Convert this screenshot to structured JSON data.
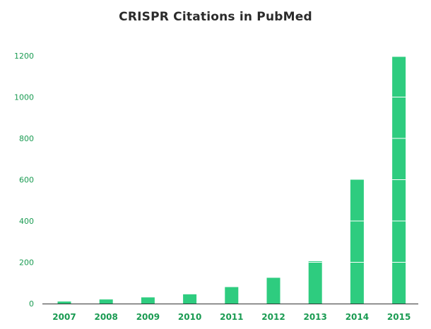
{
  "chart_data": {
    "type": "bar",
    "title": "CRISPR Citations in PubMed",
    "xlabel": "",
    "ylabel": "",
    "categories": [
      "2007",
      "2008",
      "2009",
      "2010",
      "2011",
      "2012",
      "2013",
      "2014",
      "2015"
    ],
    "values": [
      10,
      20,
      30,
      45,
      80,
      125,
      205,
      600,
      1195
    ],
    "ylim": [
      0,
      1200
    ],
    "yticks": [
      "0",
      "200",
      "400",
      "600",
      "800",
      "1000",
      "1200"
    ],
    "grid": false,
    "legend": "none",
    "colors": {
      "bar": "#2ecc7f",
      "axis_text": "#1a9b52",
      "title": "#2b2b2b",
      "baseline": "#333333",
      "bar_divider": "#ffffff"
    }
  }
}
